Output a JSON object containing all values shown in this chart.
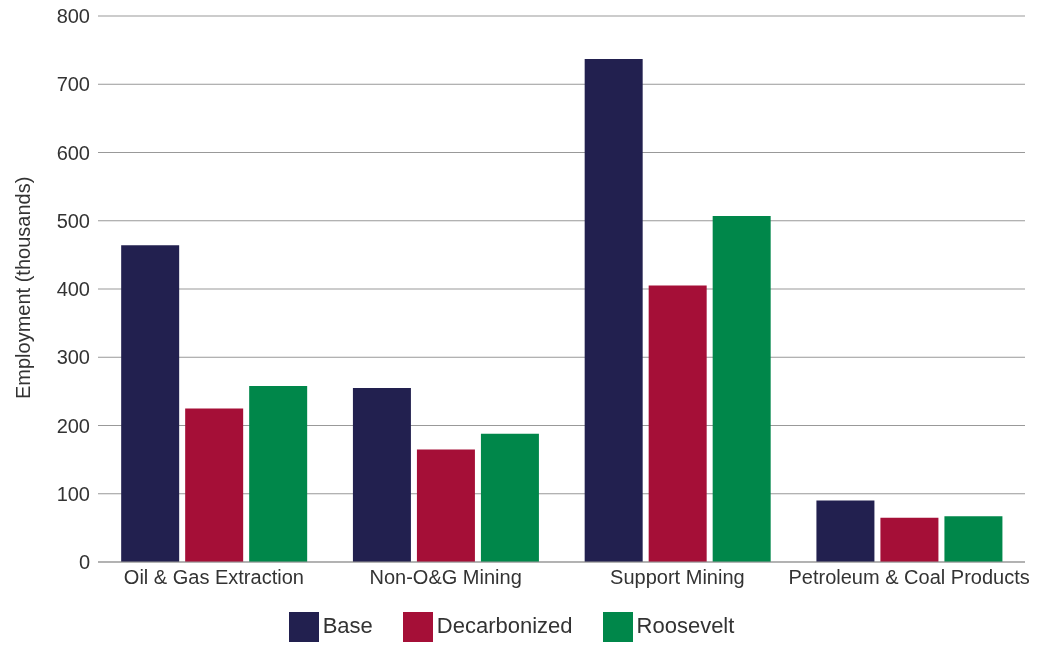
{
  "chart_data": {
    "type": "bar",
    "ylabel": "Employment (thousands)",
    "categories": [
      "Oil & Gas Extraction",
      "Non-O&G Mining",
      "Support Mining",
      "Petroleum & Coal Products"
    ],
    "series": [
      {
        "name": "Base",
        "color": "#22204f",
        "values": [
          464,
          255,
          737,
          90
        ]
      },
      {
        "name": "Decarbonized",
        "color": "#a50f37",
        "values": [
          225,
          165,
          405,
          65
        ]
      },
      {
        "name": "Roosevelt",
        "color": "#00874a",
        "values": [
          258,
          188,
          507,
          67
        ]
      }
    ],
    "ylim": [
      0,
      800
    ],
    "yticks": [
      0,
      100,
      200,
      300,
      400,
      500,
      600,
      700,
      800
    ],
    "grid": "y",
    "legend": "bottom"
  }
}
